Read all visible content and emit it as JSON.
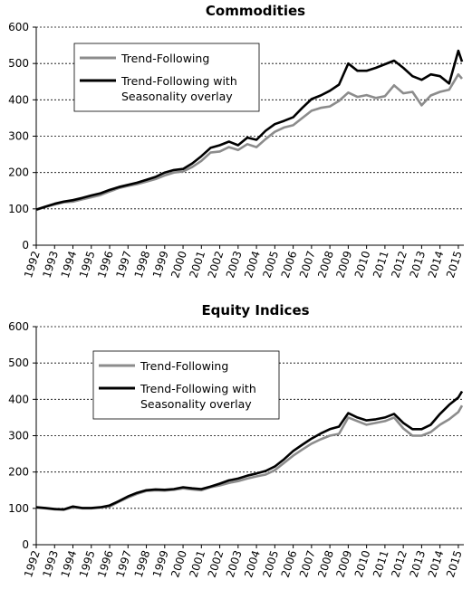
{
  "chart_data": [
    {
      "type": "line",
      "title": "Commodities",
      "xlabel": "",
      "ylabel": "",
      "ylim": [
        0,
        600
      ],
      "yticks": [
        0,
        100,
        200,
        300,
        400,
        500,
        600
      ],
      "xticks": [
        "1992",
        "1993",
        "1994",
        "1995",
        "1996",
        "1997",
        "1998",
        "1999",
        "2000",
        "2001",
        "2002",
        "2003",
        "2004",
        "2005",
        "2006",
        "2007",
        "2008",
        "2009",
        "2010",
        "2011",
        "2012",
        "2013",
        "2014",
        "2015"
      ],
      "xlim": [
        1992,
        2015.3
      ],
      "grid": "horizontal-dashed",
      "legend_placement": "top-left",
      "series": [
        {
          "name": "Trend-Following",
          "color": "#8c8c8c",
          "x": [
            1992,
            1992.5,
            1993,
            1993.5,
            1994,
            1994.5,
            1995,
            1995.5,
            1996,
            1996.5,
            1997,
            1997.5,
            1998,
            1998.5,
            1999,
            1999.5,
            2000,
            2000.5,
            2001,
            2001.5,
            2002,
            2002.5,
            2003,
            2003.5,
            2004,
            2004.5,
            2005,
            2005.5,
            2006,
            2006.5,
            2007,
            2007.5,
            2008,
            2008.5,
            2009,
            2009.5,
            2010,
            2010.5,
            2011,
            2011.5,
            2012,
            2012.5,
            2013,
            2013.5,
            2014,
            2014.5,
            2015,
            2015.2
          ],
          "y": [
            97,
            105,
            112,
            118,
            120,
            126,
            132,
            138,
            148,
            157,
            163,
            168,
            175,
            182,
            192,
            200,
            203,
            215,
            232,
            255,
            258,
            270,
            262,
            278,
            270,
            292,
            312,
            324,
            330,
            350,
            370,
            378,
            382,
            397,
            420,
            408,
            413,
            405,
            410,
            440,
            418,
            422,
            385,
            412,
            422,
            428,
            470,
            458
          ]
        },
        {
          "name": "Trend-Following with Seasonality overlay",
          "color": "#000000",
          "x": [
            1992,
            1992.5,
            1993,
            1993.5,
            1994,
            1994.5,
            1995,
            1995.5,
            1996,
            1996.5,
            1997,
            1997.5,
            1998,
            1998.5,
            1999,
            1999.5,
            2000,
            2000.5,
            2001,
            2001.5,
            2002,
            2002.5,
            2003,
            2003.5,
            2004,
            2004.5,
            2005,
            2005.5,
            2006,
            2006.5,
            2007,
            2007.5,
            2008,
            2008.5,
            2009,
            2009.5,
            2010,
            2010.5,
            2011,
            2011.5,
            2012,
            2012.5,
            2013,
            2013.5,
            2014,
            2014.5,
            2015,
            2015.2
          ],
          "y": [
            98,
            106,
            114,
            120,
            124,
            130,
            137,
            143,
            152,
            160,
            166,
            172,
            180,
            188,
            200,
            207,
            210,
            225,
            245,
            268,
            275,
            285,
            275,
            296,
            290,
            315,
            333,
            342,
            352,
            378,
            402,
            412,
            425,
            442,
            500,
            480,
            480,
            488,
            498,
            508,
            488,
            465,
            455,
            470,
            465,
            445,
            535,
            505
          ]
        }
      ]
    },
    {
      "type": "line",
      "title": "Equity Indices",
      "xlabel": "",
      "ylabel": "",
      "ylim": [
        0,
        600
      ],
      "yticks": [
        0,
        100,
        200,
        300,
        400,
        500,
        600
      ],
      "xticks": [
        "1992",
        "1993",
        "1994",
        "1995",
        "1996",
        "1997",
        "1998",
        "1999",
        "2000",
        "2001",
        "2002",
        "2003",
        "2004",
        "2005",
        "2006",
        "2007",
        "2008",
        "2009",
        "2010",
        "2011",
        "2012",
        "2013",
        "2014",
        "2015"
      ],
      "xlim": [
        1992,
        2015.3
      ],
      "grid": "horizontal-dashed",
      "legend_placement": "top-left",
      "series": [
        {
          "name": "Trend-Following",
          "color": "#8c8c8c",
          "x": [
            1992,
            1992.5,
            1993,
            1993.5,
            1994,
            1994.5,
            1995,
            1995.5,
            1996,
            1996.5,
            1997,
            1997.5,
            1998,
            1998.5,
            1999,
            1999.5,
            2000,
            2000.5,
            2001,
            2001.5,
            2002,
            2002.5,
            2003,
            2003.5,
            2004,
            2004.5,
            2005,
            2005.5,
            2006,
            2006.5,
            2007,
            2007.5,
            2008,
            2008.5,
            2009,
            2009.5,
            2010,
            2010.5,
            2011,
            2011.5,
            2012,
            2012.5,
            2013,
            2013.5,
            2014,
            2014.5,
            2015,
            2015.2
          ],
          "y": [
            102,
            100,
            97,
            96,
            103,
            100,
            100,
            102,
            105,
            118,
            130,
            140,
            148,
            150,
            149,
            151,
            155,
            152,
            150,
            158,
            163,
            170,
            175,
            182,
            188,
            193,
            205,
            225,
            245,
            262,
            278,
            290,
            300,
            305,
            350,
            340,
            330,
            335,
            340,
            350,
            320,
            300,
            300,
            310,
            330,
            345,
            365,
            383
          ]
        },
        {
          "name": "Trend-Following with Seasonality overlay",
          "color": "#000000",
          "x": [
            1992,
            1992.5,
            1993,
            1993.5,
            1994,
            1994.5,
            1995,
            1995.5,
            1996,
            1996.5,
            1997,
            1997.5,
            1998,
            1998.5,
            1999,
            1999.5,
            2000,
            2000.5,
            2001,
            2001.5,
            2002,
            2002.5,
            2003,
            2003.5,
            2004,
            2004.5,
            2005,
            2005.5,
            2006,
            2006.5,
            2007,
            2007.5,
            2008,
            2008.5,
            2009,
            2009.5,
            2010,
            2010.5,
            2011,
            2011.5,
            2012,
            2012.5,
            2013,
            2013.5,
            2014,
            2014.5,
            2015,
            2015.2
          ],
          "y": [
            103,
            101,
            98,
            97,
            105,
            101,
            101,
            103,
            108,
            120,
            133,
            143,
            150,
            152,
            151,
            153,
            158,
            155,
            153,
            160,
            168,
            177,
            182,
            190,
            196,
            203,
            215,
            235,
            258,
            275,
            292,
            306,
            318,
            325,
            362,
            350,
            342,
            345,
            350,
            360,
            335,
            318,
            318,
            330,
            360,
            385,
            405,
            422
          ]
        }
      ]
    }
  ]
}
